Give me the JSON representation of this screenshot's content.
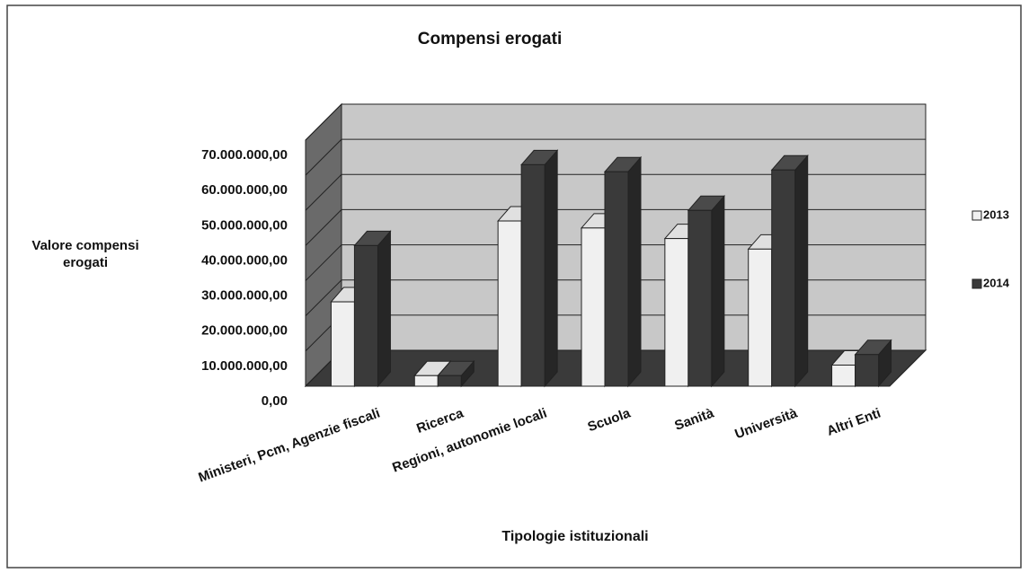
{
  "chart_data": {
    "type": "bar3d",
    "title": "Compensi erogati",
    "y_label": "Valore compensi erogati",
    "x_label": "Tipologie istituzionali",
    "categories": [
      "Ministeri, Pcm, Agenzie fiscali",
      "Ricerca",
      "Regioni, autonomie locali",
      "Scuola",
      "Sanità",
      "Università",
      "Altri Enti"
    ],
    "series": [
      {
        "name": "2013",
        "color": "#f0f0f0",
        "values": [
          24000000,
          3000000,
          47000000,
          45000000,
          42000000,
          39000000,
          6000000
        ]
      },
      {
        "name": "2014",
        "color": "#3a3a3a",
        "values": [
          40000000,
          3000000,
          63000000,
          61000000,
          50000000,
          61500000,
          9000000
        ]
      }
    ],
    "ylim": [
      0,
      70000000
    ],
    "yticks": [
      {
        "value": 0,
        "label": "0,00"
      },
      {
        "value": 10000000,
        "label": "10.000.000,00"
      },
      {
        "value": 20000000,
        "label": "20.000.000,00"
      },
      {
        "value": 30000000,
        "label": "30.000.000,00"
      },
      {
        "value": 40000000,
        "label": "40.000.000,00"
      },
      {
        "value": 50000000,
        "label": "50.000.000,00"
      },
      {
        "value": 60000000,
        "label": "60.000.000,00"
      },
      {
        "value": 70000000,
        "label": "70.000.000,00"
      }
    ],
    "grid": true,
    "legend": "right"
  }
}
